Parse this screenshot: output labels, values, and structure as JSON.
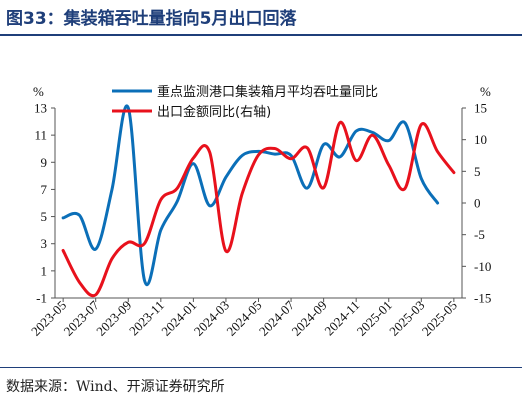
{
  "header": {
    "title": "图33：集装箱吞吐量指向5月出口回落"
  },
  "source": "数据来源：Wind、开源证券研究所",
  "chart_data": {
    "type": "line",
    "y_left_label": "%",
    "y_right_label": "%",
    "y_left_lim": [
      -1,
      13
    ],
    "y_left_ticks": [
      "-1",
      "1",
      "3",
      "5",
      "7",
      "9",
      "11",
      "13"
    ],
    "y_right_lim": [
      -15,
      15
    ],
    "y_right_ticks": [
      "-15",
      "-10",
      "-5",
      "0",
      "5",
      "10",
      "15"
    ],
    "x": [
      "2023-05",
      "2023-06",
      "2023-07",
      "2023-08",
      "2023-09",
      "2023-10",
      "2023-11",
      "2023-12",
      "2024-01",
      "2024-02",
      "2024-03",
      "2024-04",
      "2024-05",
      "2024-06",
      "2024-07",
      "2024-08",
      "2024-09",
      "2024-10",
      "2024-11",
      "2024-12",
      "2025-01",
      "2025-02",
      "2025-03",
      "2025-04",
      "2025-05"
    ],
    "x_tick_labels": [
      "2023-05",
      "2023-07",
      "2023-09",
      "2023-11",
      "2024-01",
      "2024-03",
      "2024-05",
      "2024-07",
      "2024-09",
      "2024-11",
      "2025-01",
      "2025-03",
      "2025-05"
    ],
    "series": [
      {
        "name": "重点监测港口集装箱月平均吞吐量同比",
        "axis": "left",
        "color": "#0b6fb8",
        "values": [
          4.9,
          5.1,
          2.6,
          7.0,
          13.0,
          0.3,
          4.0,
          6.1,
          8.9,
          5.8,
          7.9,
          9.5,
          9.8,
          9.6,
          9.5,
          7.1,
          10.3,
          9.4,
          11.3,
          11.2,
          10.6,
          11.9,
          7.8,
          6.0,
          null
        ]
      },
      {
        "name": "出口金额同比(右轴)",
        "axis": "right",
        "color": "#e8111c",
        "values": [
          -7.5,
          -12.5,
          -14.5,
          -8.8,
          -6.2,
          -6.4,
          0.5,
          2.3,
          7.1,
          8.0,
          -7.6,
          1.5,
          7.6,
          8.6,
          7.0,
          8.7,
          2.4,
          12.7,
          6.7,
          10.7,
          6.0,
          2.3,
          12.4,
          8.1,
          4.8
        ]
      }
    ]
  }
}
